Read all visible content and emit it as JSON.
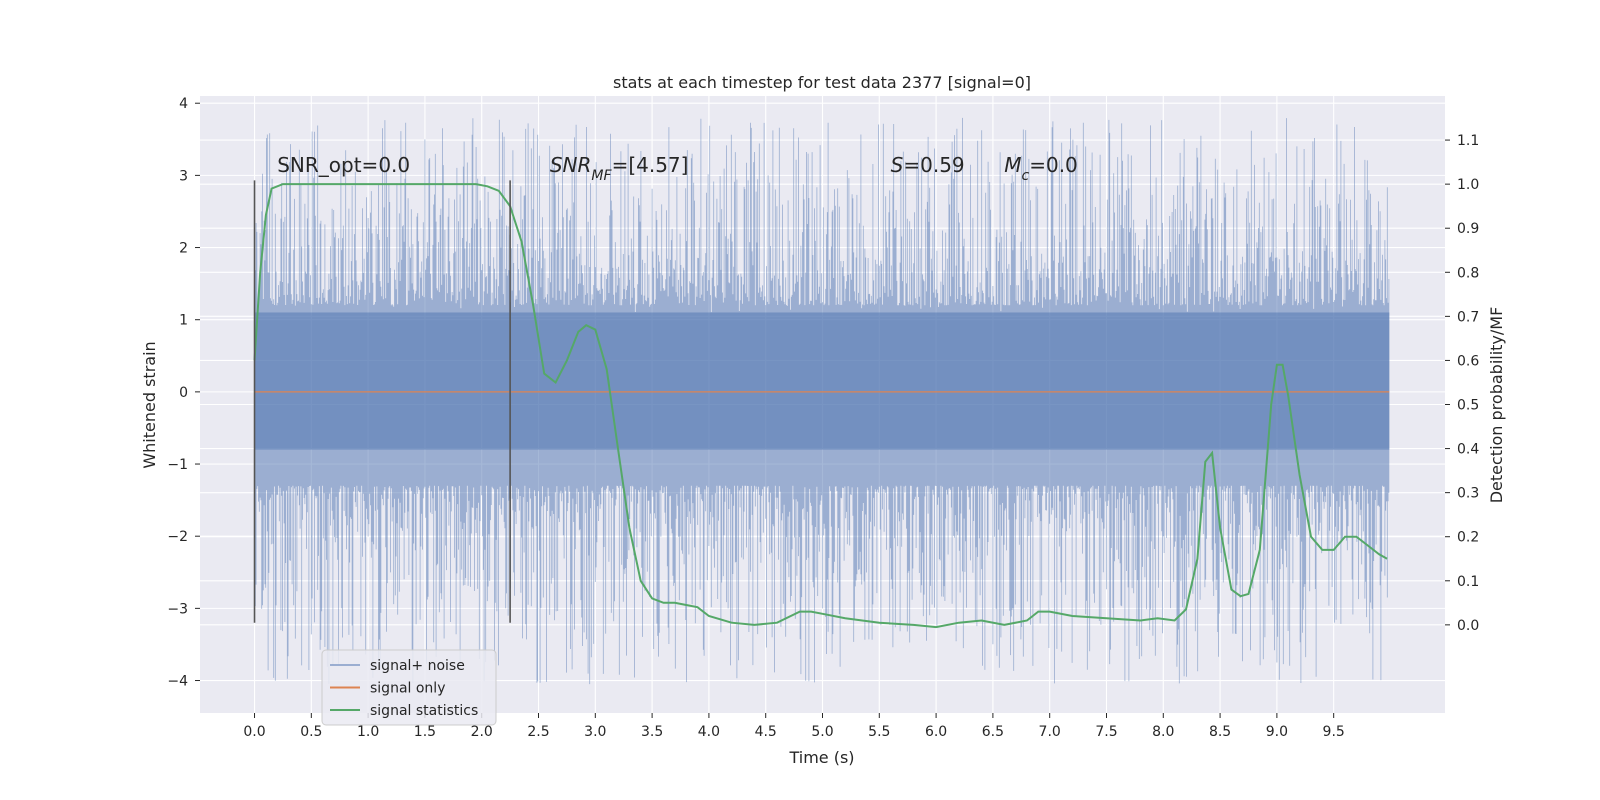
{
  "chart_data": {
    "type": "line",
    "title": "stats at each timestep for test data 2377 [signal=0]",
    "xlabel": "Time (s)",
    "ylabel": "Whitened strain",
    "ylabel_right": "Detection probability/MF",
    "xlim": [
      -0.48,
      10.48
    ],
    "ylim": [
      -4.45,
      4.1
    ],
    "ylim_right": [
      -0.2,
      1.2
    ],
    "x_ticks": [
      0.0,
      0.5,
      1.0,
      1.5,
      2.0,
      2.5,
      3.0,
      3.5,
      4.0,
      4.5,
      5.0,
      5.5,
      6.0,
      6.5,
      7.0,
      7.5,
      8.0,
      8.5,
      9.0,
      9.5
    ],
    "y_ticks": [
      -4,
      -3,
      -2,
      -1,
      0,
      1,
      2,
      3,
      4
    ],
    "y_ticks_right": [
      0.0,
      0.1,
      0.2,
      0.3,
      0.4,
      0.5,
      0.6,
      0.7,
      0.8,
      0.9,
      1.0,
      1.1
    ],
    "grid": true,
    "legend_position": "lower-left",
    "annotations": [
      {
        "x": 0.2,
        "y": 3.05,
        "text": "SNR_opt=0.0",
        "segments": [
          {
            "t": "SNR_opt=0.0",
            "italic": false
          }
        ]
      },
      {
        "x": 2.6,
        "y": 3.05,
        "text": "SNR_MF=[4.57]",
        "segments": [
          {
            "t": "SNR",
            "italic": true
          },
          {
            "t": "MF",
            "italic": true,
            "sub": true
          },
          {
            "t": "=[4.57]",
            "italic": false
          }
        ]
      },
      {
        "x": 5.6,
        "y": 3.05,
        "text": "S=0.59",
        "segments": [
          {
            "t": "S",
            "italic": true
          },
          {
            "t": "=0.59",
            "italic": false
          }
        ]
      },
      {
        "x": 6.6,
        "y": 3.05,
        "text": "M_c=0.0",
        "segments": [
          {
            "t": "M",
            "italic": true
          },
          {
            "t": "c",
            "italic": true,
            "sub": true
          },
          {
            "t": "=0.0",
            "italic": false
          }
        ]
      }
    ],
    "vlines": [
      {
        "x": 0.0,
        "ymin": -3.2,
        "ymax": 2.93
      },
      {
        "x": 2.25,
        "ymin": -3.2,
        "ymax": 2.93
      }
    ],
    "series": [
      {
        "name": "signal+ noise",
        "axis": "left",
        "color": "#4c72b0",
        "opacity": 0.5,
        "x_range": [
          0.0,
          9.99
        ],
        "envelope": {
          "spike_min": 1.2,
          "spike_max": 3.8,
          "trough_min": -1.3,
          "trough_max": -4.05,
          "band": [
            -0.8,
            1.1
          ]
        }
      },
      {
        "name": "signal only",
        "axis": "left",
        "color": "#dd8452",
        "x": [
          0.0,
          9.99
        ],
        "y": [
          0.0,
          0.0
        ]
      },
      {
        "name": "signal statistics",
        "axis": "right",
        "color": "#55a868",
        "x": [
          0.0,
          0.05,
          0.1,
          0.15,
          0.25,
          0.5,
          1.0,
          1.5,
          1.8,
          1.95,
          2.05,
          2.15,
          2.25,
          2.35,
          2.45,
          2.55,
          2.65,
          2.75,
          2.85,
          2.92,
          3.0,
          3.1,
          3.2,
          3.3,
          3.4,
          3.5,
          3.6,
          3.7,
          3.8,
          3.9,
          4.0,
          4.2,
          4.4,
          4.6,
          4.8,
          4.9,
          5.0,
          5.2,
          5.5,
          5.8,
          6.0,
          6.2,
          6.4,
          6.6,
          6.8,
          6.9,
          7.0,
          7.2,
          7.5,
          7.8,
          7.95,
          8.1,
          8.2,
          8.3,
          8.37,
          8.43,
          8.5,
          8.6,
          8.68,
          8.75,
          8.85,
          8.95,
          9.0,
          9.05,
          9.1,
          9.2,
          9.3,
          9.4,
          9.5,
          9.6,
          9.7,
          9.8,
          9.9,
          9.97
        ],
        "y": [
          0.6,
          0.8,
          0.93,
          0.99,
          1.0,
          1.0,
          1.0,
          1.0,
          1.0,
          1.0,
          0.995,
          0.985,
          0.95,
          0.87,
          0.73,
          0.57,
          0.55,
          0.6,
          0.665,
          0.68,
          0.67,
          0.58,
          0.4,
          0.22,
          0.1,
          0.06,
          0.05,
          0.05,
          0.045,
          0.04,
          0.02,
          0.005,
          0.0,
          0.005,
          0.03,
          0.03,
          0.025,
          0.015,
          0.005,
          0.0,
          -0.005,
          0.005,
          0.01,
          0.0,
          0.01,
          0.03,
          0.03,
          0.02,
          0.015,
          0.01,
          0.015,
          0.01,
          0.035,
          0.15,
          0.37,
          0.39,
          0.22,
          0.08,
          0.065,
          0.07,
          0.17,
          0.5,
          0.59,
          0.59,
          0.52,
          0.34,
          0.2,
          0.17,
          0.17,
          0.2,
          0.2,
          0.18,
          0.16,
          0.15
        ]
      }
    ]
  }
}
